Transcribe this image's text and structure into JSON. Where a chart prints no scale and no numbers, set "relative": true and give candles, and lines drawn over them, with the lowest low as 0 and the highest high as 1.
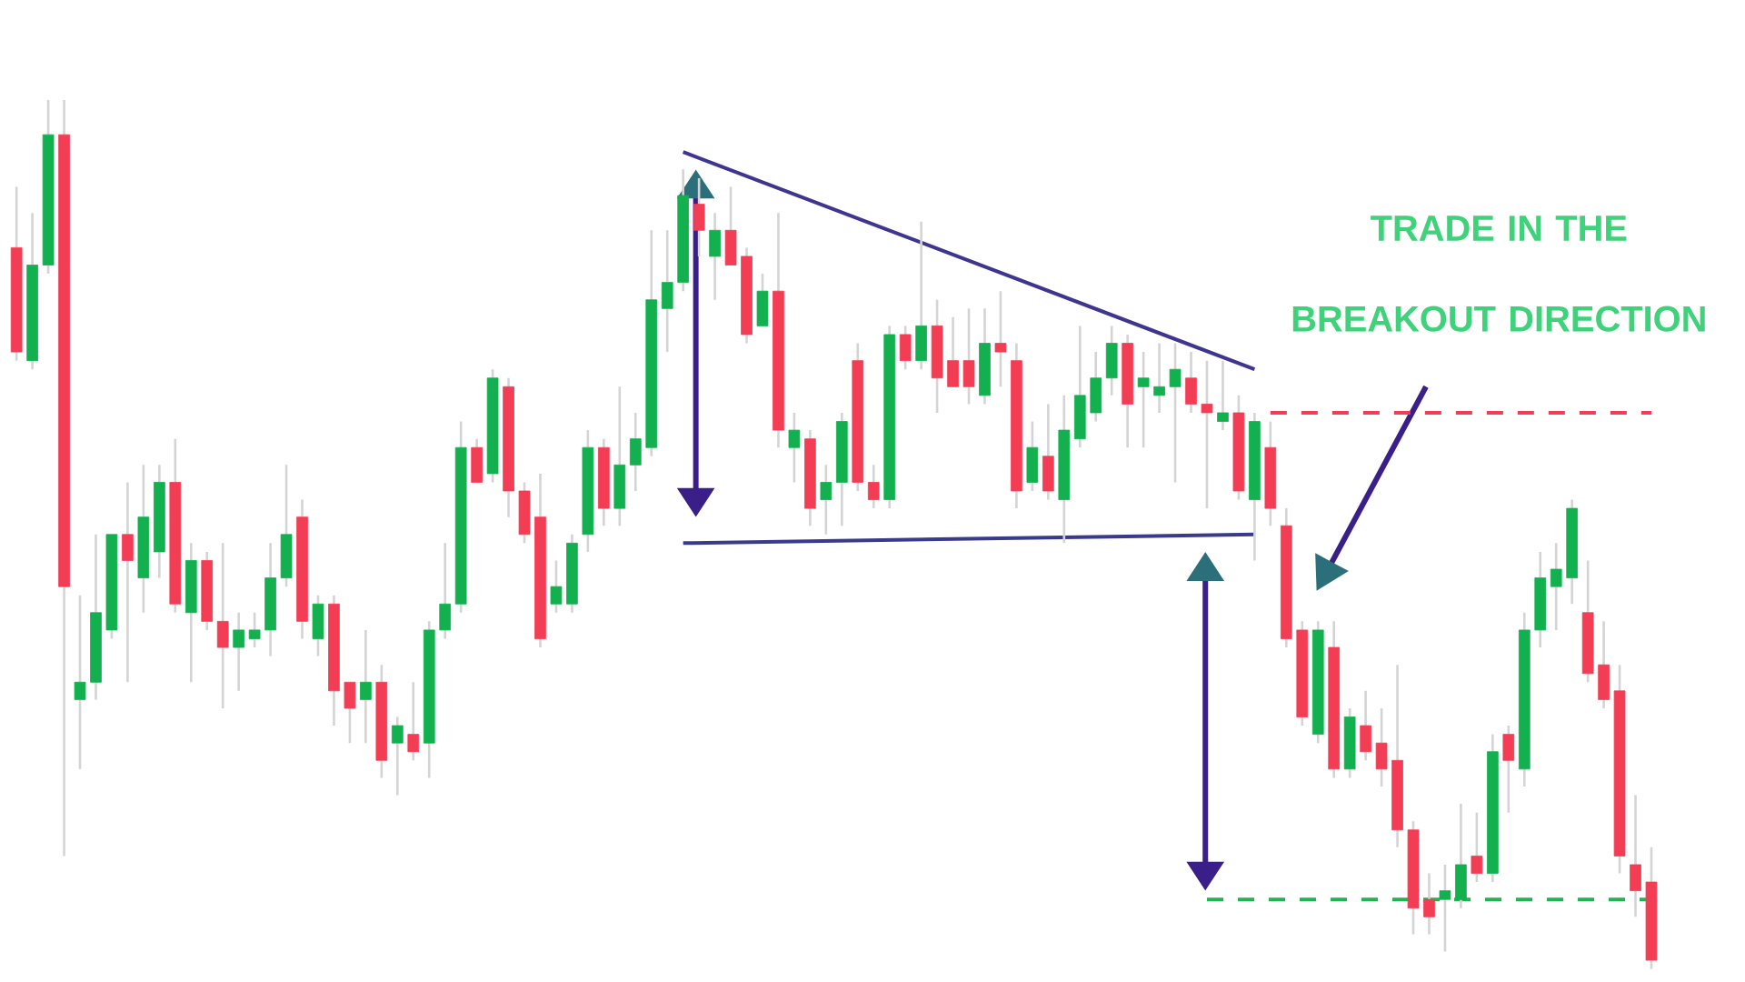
{
  "chart_data": {
    "type": "candlestick",
    "relative": true,
    "categories": [
      null,
      null,
      null,
      null,
      null,
      null,
      null,
      null,
      null,
      null,
      null,
      null,
      null,
      null,
      null,
      null,
      null,
      null,
      null,
      null,
      null,
      null,
      null,
      null,
      null,
      null,
      null,
      null,
      null,
      null,
      null,
      null,
      null,
      null,
      null,
      null,
      null,
      null,
      null,
      null,
      null,
      null,
      null,
      null,
      null,
      null,
      null,
      null,
      null,
      null,
      null,
      null,
      null,
      null,
      null,
      null,
      null,
      null,
      null,
      null,
      null,
      null,
      null,
      null,
      null,
      null,
      null,
      null,
      null,
      null,
      null,
      null,
      null,
      null,
      null,
      null,
      null,
      null,
      null,
      null,
      null,
      null,
      null,
      null,
      null,
      null,
      null,
      null,
      null,
      null,
      null,
      null,
      null,
      null,
      null,
      null,
      null,
      null,
      null,
      null,
      null,
      null,
      null,
      null
    ],
    "ohlc": [
      [
        0.83,
        0.9,
        0.7,
        0.71
      ],
      [
        0.7,
        0.87,
        0.69,
        0.81
      ],
      [
        0.81,
        1.0,
        0.8,
        0.96
      ],
      [
        0.96,
        1.0,
        0.13,
        0.44
      ],
      [
        0.31,
        0.43,
        0.23,
        0.33
      ],
      [
        0.33,
        0.5,
        0.31,
        0.41
      ],
      [
        0.39,
        0.5,
        0.38,
        0.5
      ],
      [
        0.5,
        0.56,
        0.33,
        0.47
      ],
      [
        0.45,
        0.58,
        0.41,
        0.52
      ],
      [
        0.48,
        0.58,
        0.45,
        0.56
      ],
      [
        0.56,
        0.61,
        0.41,
        0.42
      ],
      [
        0.41,
        0.49,
        0.33,
        0.47
      ],
      [
        0.47,
        0.48,
        0.39,
        0.4
      ],
      [
        0.4,
        0.49,
        0.3,
        0.37
      ],
      [
        0.37,
        0.41,
        0.32,
        0.39
      ],
      [
        0.38,
        0.41,
        0.37,
        0.39
      ],
      [
        0.39,
        0.49,
        0.36,
        0.45
      ],
      [
        0.45,
        0.58,
        0.44,
        0.5
      ],
      [
        0.52,
        0.54,
        0.38,
        0.4
      ],
      [
        0.38,
        0.43,
        0.36,
        0.42
      ],
      [
        0.42,
        0.43,
        0.28,
        0.32
      ],
      [
        0.33,
        0.33,
        0.26,
        0.3
      ],
      [
        0.31,
        0.39,
        0.26,
        0.33
      ],
      [
        0.33,
        0.35,
        0.22,
        0.24
      ],
      [
        0.26,
        0.29,
        0.2,
        0.28
      ],
      [
        0.27,
        0.33,
        0.24,
        0.25
      ],
      [
        0.26,
        0.4,
        0.22,
        0.39
      ],
      [
        0.39,
        0.49,
        0.38,
        0.42
      ],
      [
        0.42,
        0.63,
        0.41,
        0.6
      ],
      [
        0.6,
        0.61,
        0.56,
        0.56
      ],
      [
        0.57,
        0.69,
        0.56,
        0.68
      ],
      [
        0.67,
        0.68,
        0.52,
        0.55
      ],
      [
        0.55,
        0.56,
        0.49,
        0.5
      ],
      [
        0.52,
        0.57,
        0.37,
        0.38
      ],
      [
        0.42,
        0.47,
        0.41,
        0.44
      ],
      [
        0.42,
        0.5,
        0.41,
        0.49
      ],
      [
        0.5,
        0.62,
        0.48,
        0.6
      ],
      [
        0.6,
        0.61,
        0.51,
        0.53
      ],
      [
        0.53,
        0.67,
        0.51,
        0.58
      ],
      [
        0.58,
        0.64,
        0.55,
        0.61
      ],
      [
        0.6,
        0.85,
        0.59,
        0.77
      ],
      [
        0.76,
        0.85,
        0.71,
        0.79
      ],
      [
        0.79,
        0.92,
        0.78,
        0.89
      ],
      [
        0.88,
        0.91,
        0.82,
        0.85
      ],
      [
        0.82,
        0.87,
        0.77,
        0.85
      ],
      [
        0.85,
        0.9,
        0.81,
        0.81
      ],
      [
        0.82,
        0.83,
        0.72,
        0.73
      ],
      [
        0.74,
        0.8,
        0.74,
        0.78
      ],
      [
        0.78,
        0.87,
        0.6,
        0.62
      ],
      [
        0.6,
        0.64,
        0.56,
        0.62
      ],
      [
        0.61,
        0.62,
        0.51,
        0.53
      ],
      [
        0.54,
        0.58,
        0.5,
        0.56
      ],
      [
        0.56,
        0.64,
        0.51,
        0.63
      ],
      [
        0.7,
        0.72,
        0.55,
        0.56
      ],
      [
        0.56,
        0.58,
        0.53,
        0.54
      ],
      [
        0.54,
        0.74,
        0.53,
        0.73
      ],
      [
        0.73,
        0.74,
        0.69,
        0.7
      ],
      [
        0.7,
        0.86,
        0.69,
        0.74
      ],
      [
        0.74,
        0.77,
        0.64,
        0.68
      ],
      [
        0.7,
        0.75,
        0.67,
        0.67
      ],
      [
        0.7,
        0.76,
        0.65,
        0.67
      ],
      [
        0.66,
        0.76,
        0.65,
        0.72
      ],
      [
        0.72,
        0.78,
        0.67,
        0.71
      ],
      [
        0.7,
        0.72,
        0.53,
        0.55
      ],
      [
        0.56,
        0.63,
        0.55,
        0.6
      ],
      [
        0.59,
        0.65,
        0.54,
        0.55
      ],
      [
        0.54,
        0.66,
        0.49,
        0.62
      ],
      [
        0.61,
        0.74,
        0.6,
        0.66
      ],
      [
        0.64,
        0.71,
        0.63,
        0.68
      ],
      [
        0.68,
        0.74,
        0.66,
        0.72
      ],
      [
        0.72,
        0.73,
        0.6,
        0.65
      ],
      [
        0.67,
        0.71,
        0.6,
        0.68
      ],
      [
        0.66,
        0.72,
        0.64,
        0.67
      ],
      [
        0.67,
        0.72,
        0.56,
        0.69
      ],
      [
        0.68,
        0.71,
        0.64,
        0.65
      ],
      [
        0.65,
        0.7,
        0.53,
        0.64
      ],
      [
        0.63,
        0.7,
        0.62,
        0.64
      ],
      [
        0.64,
        0.66,
        0.54,
        0.55
      ],
      [
        0.54,
        0.64,
        0.47,
        0.63
      ],
      [
        0.6,
        0.63,
        0.51,
        0.53
      ],
      [
        0.51,
        0.53,
        0.37,
        0.38
      ],
      [
        0.39,
        0.4,
        0.28,
        0.29
      ],
      [
        0.27,
        0.4,
        0.26,
        0.39
      ],
      [
        0.37,
        0.4,
        0.22,
        0.23
      ],
      [
        0.23,
        0.3,
        0.22,
        0.29
      ],
      [
        0.28,
        0.32,
        0.24,
        0.25
      ],
      [
        0.26,
        0.3,
        0.21,
        0.23
      ],
      [
        0.24,
        0.35,
        0.14,
        0.16
      ],
      [
        0.16,
        0.17,
        0.04,
        0.07
      ],
      [
        0.08,
        0.11,
        0.04,
        0.06
      ],
      [
        0.08,
        0.12,
        0.02,
        0.09
      ],
      [
        0.08,
        0.19,
        0.07,
        0.12
      ],
      [
        0.13,
        0.18,
        0.1,
        0.11
      ],
      [
        0.11,
        0.27,
        0.1,
        0.25
      ],
      [
        0.27,
        0.28,
        0.18,
        0.24
      ],
      [
        0.23,
        0.41,
        0.21,
        0.39
      ],
      [
        0.39,
        0.48,
        0.37,
        0.45
      ],
      [
        0.44,
        0.49,
        0.39,
        0.46
      ],
      [
        0.45,
        0.54,
        0.42,
        0.53
      ],
      [
        0.41,
        0.47,
        0.33,
        0.34
      ],
      [
        0.35,
        0.4,
        0.3,
        0.31
      ],
      [
        0.32,
        0.35,
        0.11,
        0.13
      ],
      [
        0.12,
        0.2,
        0.06,
        0.09
      ],
      [
        0.1,
        0.14,
        0.0,
        0.01
      ]
    ],
    "colors": [
      "#f23d55",
      "#12b04f",
      "#12b04f",
      "#f23d55",
      "#12b04f",
      "#12b04f",
      "#12b04f",
      "#f23d55",
      "#12b04f",
      "#12b04f",
      "#f23d55",
      "#12b04f",
      "#f23d55",
      "#f23d55",
      "#12b04f",
      "#12b04f",
      "#12b04f",
      "#12b04f",
      "#f23d55",
      "#12b04f",
      "#f23d55",
      "#f23d55",
      "#12b04f",
      "#f23d55",
      "#12b04f",
      "#f23d55",
      "#12b04f",
      "#12b04f",
      "#12b04f",
      "#f23d55",
      "#12b04f",
      "#f23d55",
      "#f23d55",
      "#f23d55",
      "#12b04f",
      "#12b04f",
      "#12b04f",
      "#f23d55",
      "#12b04f",
      "#12b04f",
      "#12b04f",
      "#12b04f",
      "#12b04f",
      "#f23d55",
      "#12b04f",
      "#f23d55",
      "#f23d55",
      "#12b04f",
      "#f23d55",
      "#12b04f",
      "#f23d55",
      "#12b04f",
      "#12b04f",
      "#f23d55",
      "#f23d55",
      "#12b04f",
      "#f23d55",
      "#12b04f",
      "#f23d55",
      "#f23d55",
      "#f23d55",
      "#12b04f",
      "#f23d55",
      "#f23d55",
      "#12b04f",
      "#f23d55",
      "#12b04f",
      "#12b04f",
      "#12b04f",
      "#12b04f",
      "#f23d55",
      "#12b04f",
      "#12b04f",
      "#12b04f",
      "#f23d55",
      "#f23d55",
      "#12b04f",
      "#f23d55",
      "#12b04f",
      "#f23d55",
      "#f23d55",
      "#f23d55",
      "#12b04f",
      "#f23d55",
      "#12b04f",
      "#f23d55",
      "#f23d55",
      "#f23d55",
      "#f23d55",
      "#f23d55",
      "#12b04f",
      "#12b04f",
      "#f23d55",
      "#12b04f",
      "#f23d55",
      "#12b04f",
      "#12b04f",
      "#12b04f",
      "#12b04f",
      "#f23d55",
      "#f23d55",
      "#f23d55",
      "#f23d55",
      "#f23d55"
    ],
    "series": [
      {
        "type": "line",
        "color": "#3d3590",
        "line_style": "solid",
        "values": [
          null,
          null,
          null,
          null,
          null,
          null,
          null,
          null,
          null,
          null,
          null,
          null,
          null,
          null,
          null,
          null,
          null,
          null,
          null,
          null,
          null,
          null,
          null,
          null,
          null,
          null,
          null,
          null,
          null,
          null,
          null,
          null,
          null,
          null,
          null,
          null,
          null,
          null,
          null,
          null,
          null,
          null,
          0.94,
          null,
          null,
          null,
          null,
          null,
          null,
          null,
          null,
          null,
          null,
          null,
          null,
          null,
          null,
          null,
          null,
          null,
          null,
          null,
          null,
          null,
          null,
          null,
          null,
          null,
          null,
          null,
          null,
          null,
          null,
          null,
          null,
          null,
          null,
          null,
          0.69,
          null,
          null,
          null,
          null,
          null,
          null,
          null,
          null,
          null,
          null,
          null,
          null,
          null,
          null,
          null,
          null,
          null,
          null,
          null,
          null,
          null,
          null,
          null,
          null,
          null
        ]
      },
      {
        "type": "line",
        "color": "#3a3a8c",
        "line_style": "solid",
        "values": [
          null,
          null,
          null,
          null,
          null,
          null,
          null,
          null,
          null,
          null,
          null,
          null,
          null,
          null,
          null,
          null,
          null,
          null,
          null,
          null,
          null,
          null,
          null,
          null,
          null,
          null,
          null,
          null,
          null,
          null,
          null,
          null,
          null,
          null,
          null,
          null,
          null,
          null,
          null,
          null,
          null,
          null,
          0.49,
          null,
          null,
          null,
          null,
          null,
          null,
          null,
          null,
          null,
          null,
          null,
          null,
          null,
          null,
          null,
          null,
          null,
          null,
          null,
          null,
          null,
          null,
          null,
          null,
          null,
          null,
          null,
          null,
          null,
          null,
          null,
          null,
          null,
          null,
          null,
          0.5,
          null,
          null,
          null,
          null,
          null,
          null,
          null,
          null,
          null,
          null,
          null,
          null,
          null,
          null,
          null,
          null,
          null,
          null,
          null,
          null,
          null,
          null,
          null,
          null,
          null
        ]
      },
      {
        "type": "line",
        "color": "#f23d55",
        "line_style": "dashed",
        "values": [
          null,
          null,
          null,
          null,
          null,
          null,
          null,
          null,
          null,
          null,
          null,
          null,
          null,
          null,
          null,
          null,
          null,
          null,
          null,
          null,
          null,
          null,
          null,
          null,
          null,
          null,
          null,
          null,
          null,
          null,
          null,
          null,
          null,
          null,
          null,
          null,
          null,
          null,
          null,
          null,
          null,
          null,
          null,
          null,
          null,
          null,
          null,
          null,
          null,
          null,
          null,
          null,
          null,
          null,
          null,
          null,
          null,
          null,
          null,
          null,
          null,
          null,
          null,
          null,
          null,
          null,
          null,
          null,
          null,
          null,
          null,
          null,
          null,
          null,
          null,
          null,
          null,
          null,
          null,
          0.64,
          null,
          null,
          null,
          null,
          null,
          null,
          null,
          null,
          null,
          null,
          null,
          null,
          null,
          null,
          null,
          null,
          null,
          null,
          null,
          null,
          null,
          null,
          null,
          0.64
        ]
      },
      {
        "type": "line",
        "color": "#21b552",
        "line_style": "dashed",
        "values": [
          null,
          null,
          null,
          null,
          null,
          null,
          null,
          null,
          null,
          null,
          null,
          null,
          null,
          null,
          null,
          null,
          null,
          null,
          null,
          null,
          null,
          null,
          null,
          null,
          null,
          null,
          null,
          null,
          null,
          null,
          null,
          null,
          null,
          null,
          null,
          null,
          null,
          null,
          null,
          null,
          null,
          null,
          null,
          null,
          null,
          null,
          null,
          null,
          null,
          null,
          null,
          null,
          null,
          null,
          null,
          null,
          null,
          null,
          null,
          null,
          null,
          null,
          null,
          null,
          null,
          null,
          null,
          null,
          null,
          null,
          null,
          null,
          null,
          null,
          null,
          0.08,
          null,
          null,
          null,
          null,
          null,
          null,
          null,
          null,
          null,
          null,
          null,
          null,
          null,
          null,
          null,
          null,
          null,
          null,
          null,
          null,
          null,
          null,
          null,
          null,
          null,
          null,
          null,
          0.08
        ]
      }
    ],
    "annotations": [
      "TRADE IN THE BREAKOUT DIRECTION"
    ]
  }
}
